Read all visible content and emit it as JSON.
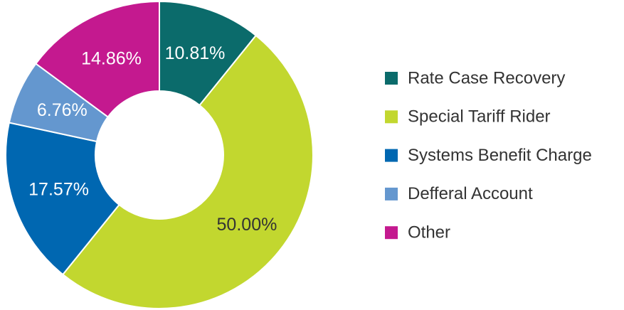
{
  "chart_data": {
    "type": "donut",
    "categories": [
      "Rate Case Recovery",
      "Special Tariff Rider",
      "Systems Benefit Charge",
      "Defferal Account",
      "Other"
    ],
    "values": [
      10.81,
      50.0,
      17.57,
      6.76,
      14.86
    ],
    "value_labels": [
      "10.81%",
      "50.00%",
      "17.57%",
      "6.76%",
      "14.86%"
    ],
    "colors": [
      "#0b6b6b",
      "#c2d72f",
      "#0067b1",
      "#6497cf",
      "#c4198f"
    ],
    "legend": "right"
  }
}
